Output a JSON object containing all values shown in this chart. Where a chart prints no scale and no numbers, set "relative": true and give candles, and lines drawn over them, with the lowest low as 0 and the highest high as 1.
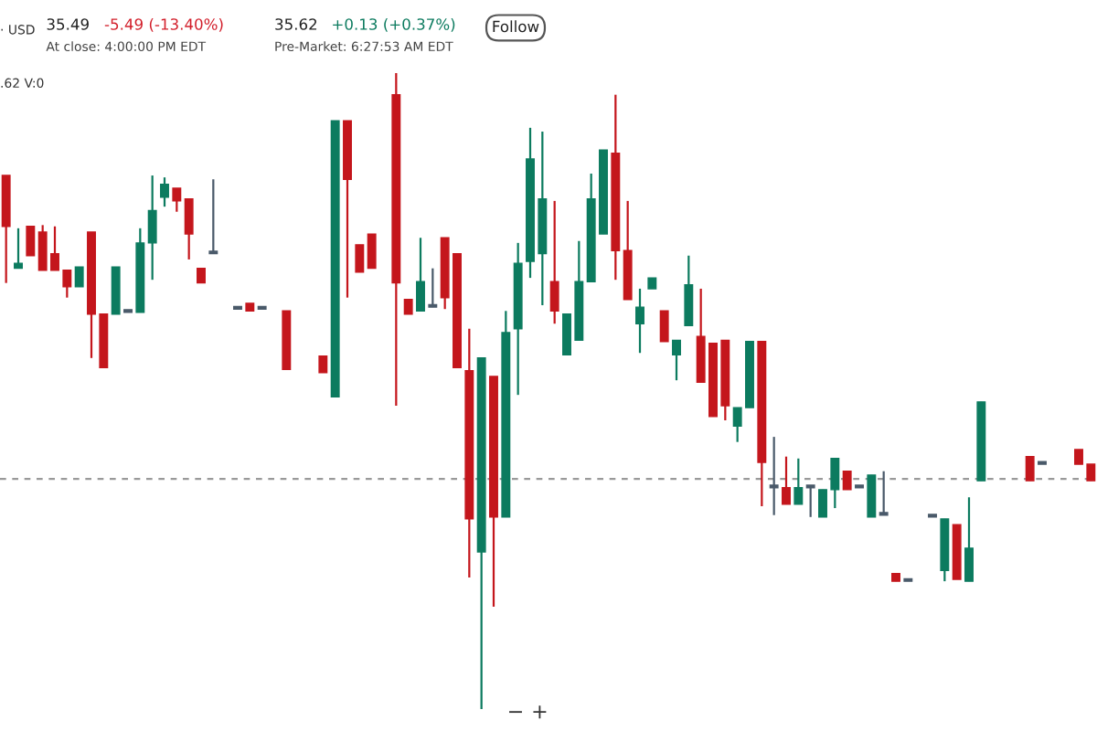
{
  "chart_data": {
    "type": "candlestick",
    "relative": true,
    "categories": [
      null,
      null,
      null,
      null,
      null,
      null,
      null,
      null,
      null,
      null,
      null,
      null,
      null,
      null,
      null,
      null,
      null,
      null,
      null,
      null,
      null,
      null,
      null,
      null,
      null,
      null,
      null,
      null,
      null,
      null,
      null,
      null,
      null,
      null,
      null,
      null,
      null,
      null,
      null,
      null,
      null,
      null,
      null,
      null,
      null,
      null,
      null,
      null,
      null,
      null,
      null,
      null,
      null,
      null,
      null,
      null,
      null,
      null,
      null,
      null,
      null,
      null,
      null,
      null,
      null,
      null,
      null,
      null,
      null,
      null,
      null,
      null,
      null,
      null,
      null,
      null,
      null,
      null,
      null,
      null,
      null,
      null,
      null,
      null,
      null,
      null,
      null,
      null,
      null,
      null
    ],
    "ohlc": [
      [
        0.839,
        0.839,
        0.67,
        0.759
      ],
      [
        0.693,
        0.756,
        0.693,
        0.701
      ],
      [
        0.759,
        0.759,
        0.713,
        0.713
      ],
      [
        0.75,
        0.761,
        0.69,
        0.69
      ],
      [
        0.716,
        0.759,
        0.69,
        0.69
      ],
      [
        0.69,
        0.69,
        0.647,
        0.664
      ],
      [
        0.664,
        0.695,
        0.664,
        0.695
      ],
      [
        0.75,
        0.75,
        0.552,
        0.621
      ],
      [
        0.621,
        0.621,
        0.537,
        0.537
      ],
      [
        0.621,
        0.695,
        0.621,
        0.695
      ],
      [
        0.624,
        0.624,
        0.624,
        0.624
      ],
      [
        0.624,
        0.756,
        0.624,
        0.733
      ],
      [
        0.733,
        0.839,
        0.675,
        0.784
      ],
      [
        0.805,
        0.836,
        0.79,
        0.825
      ],
      [
        0.819,
        0.819,
        0.782,
        0.799
      ],
      [
        0.802,
        0.802,
        0.707,
        0.747
      ],
      [
        0.693,
        0.693,
        0.67,
        0.67
      ],
      [
        0.716,
        0.833,
        0.716,
        0.716
      ],
      null,
      [
        0.629,
        0.629,
        0.629,
        0.629
      ],
      [
        0.638,
        0.638,
        0.626,
        0.626
      ],
      [
        0.629,
        0.629,
        0.629,
        0.629
      ],
      null,
      [
        0.626,
        0.626,
        0.534,
        0.534
      ],
      null,
      null,
      [
        0.555,
        0.555,
        0.529,
        0.529
      ],
      [
        0.491,
        0.925,
        0.491,
        0.925
      ],
      [
        0.925,
        0.925,
        0.647,
        0.833
      ],
      [
        0.73,
        0.73,
        0.687,
        0.687
      ],
      [
        0.747,
        0.747,
        0.693,
        0.693
      ],
      null,
      [
        0.966,
        1.0,
        0.477,
        0.67
      ],
      [
        0.644,
        0.644,
        0.621,
        0.621
      ],
      [
        0.626,
        0.741,
        0.626,
        0.672
      ],
      [
        0.632,
        0.693,
        0.632,
        0.632
      ],
      [
        0.741,
        0.741,
        0.629,
        0.647
      ],
      [
        0.716,
        0.716,
        0.537,
        0.537
      ],
      [
        0.532,
        0.598,
        0.207,
        0.299
      ],
      [
        0.247,
        0.552,
        0.0,
        0.552
      ],
      [
        0.523,
        0.523,
        0.161,
        0.302
      ],
      [
        0.302,
        0.626,
        0.302,
        0.592
      ],
      [
        0.598,
        0.733,
        0.494,
        0.701
      ],
      [
        0.704,
        0.914,
        0.678,
        0.865
      ],
      [
        0.716,
        0.908,
        0.635,
        0.802
      ],
      [
        0.672,
        0.799,
        0.606,
        0.626
      ],
      [
        0.557,
        0.621,
        0.557,
        0.621
      ],
      [
        0.58,
        0.736,
        0.58,
        0.672
      ],
      [
        0.672,
        0.842,
        0.672,
        0.802
      ],
      [
        0.747,
        0.879,
        0.747,
        0.879
      ],
      [
        0.874,
        0.966,
        0.675,
        0.721
      ],
      [
        0.721,
        0.799,
        0.644,
        0.644
      ],
      [
        0.606,
        0.661,
        0.56,
        0.632
      ],
      [
        0.661,
        0.678,
        0.661,
        0.678
      ],
      [
        0.626,
        0.626,
        0.578,
        0.578
      ],
      [
        0.557,
        0.58,
        0.517,
        0.58
      ],
      [
        0.603,
        0.713,
        0.603,
        0.667
      ],
      [
        0.586,
        0.661,
        0.514,
        0.514
      ],
      [
        0.575,
        0.575,
        0.46,
        0.46
      ],
      [
        0.58,
        0.58,
        0.454,
        0.477
      ],
      [
        0.445,
        0.474,
        0.42,
        0.474
      ],
      [
        0.474,
        0.578,
        0.474,
        0.578
      ],
      [
        0.578,
        0.578,
        0.319,
        0.388
      ],
      [
        0.348,
        0.428,
        0.305,
        0.348
      ],
      [
        0.348,
        0.397,
        0.322,
        0.322
      ],
      [
        0.322,
        0.394,
        0.322,
        0.348
      ],
      [
        0.348,
        0.348,
        0.302,
        0.348
      ],
      [
        0.302,
        0.345,
        0.302,
        0.345
      ],
      [
        0.345,
        0.394,
        0.316,
        0.394
      ],
      [
        0.374,
        0.374,
        0.345,
        0.345
      ],
      [
        0.348,
        0.348,
        0.348,
        0.348
      ],
      [
        0.302,
        0.368,
        0.302,
        0.368
      ],
      [
        0.305,
        0.374,
        0.305,
        0.305
      ],
      [
        0.213,
        0.213,
        0.201,
        0.201
      ],
      [
        0.201,
        0.201,
        0.201,
        0.201
      ],
      null,
      [
        0.302,
        0.302,
        0.302,
        0.302
      ],
      [
        0.218,
        0.299,
        0.201,
        0.299
      ],
      [
        0.29,
        0.29,
        0.204,
        0.204
      ],
      [
        0.201,
        0.333,
        0.201,
        0.253
      ],
      [
        0.359,
        0.483,
        0.359,
        0.483
      ],
      null,
      null,
      null,
      [
        0.397,
        0.397,
        0.359,
        0.359
      ],
      [
        0.385,
        0.385,
        0.385,
        0.385
      ],
      null,
      null,
      [
        0.408,
        0.408,
        0.385,
        0.385
      ],
      [
        0.385,
        0.385,
        0.359,
        0.359
      ]
    ],
    "ref_lines": [
      {
        "axis": "y",
        "value": 0.362,
        "color": "#999999",
        "line_style": "dashed"
      }
    ],
    "annotations": [
      "· USD",
      "35.49",
      "-5.49 (-13.40%)",
      "At close: 4:00:00 PM EDT",
      "35.62",
      "+0.13 (+0.37%)",
      "Pre-Market: 6:27:53 AM EDT",
      "Follow",
      ".62 V:0",
      "−",
      "+"
    ]
  }
}
